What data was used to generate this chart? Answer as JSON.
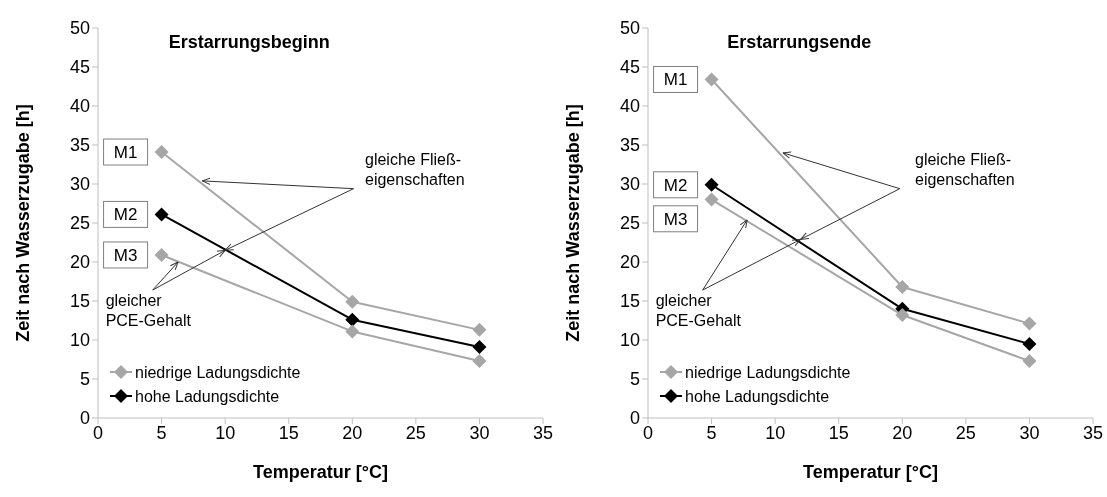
{
  "chart_data": [
    {
      "type": "line",
      "title": "Erstarrungsbeginn",
      "xlabel": "Temperatur [°C]",
      "ylabel": "Zeit nach Wasserzugabe [h]",
      "x": [
        5,
        20,
        30
      ],
      "xlim": [
        0,
        35
      ],
      "xticks": [
        0,
        5,
        10,
        15,
        20,
        25,
        30,
        35
      ],
      "ylim": [
        0,
        50
      ],
      "yticks": [
        0,
        5,
        10,
        15,
        20,
        25,
        30,
        35,
        40,
        45,
        50
      ],
      "grid": false,
      "legend": "bottom left",
      "marker": "diamond",
      "line_style": "solid",
      "series": [
        {
          "name": "niedrige Ladungsdichte",
          "color": "#a6a6a6",
          "values": [
            34.1,
            14.9,
            11.3
          ]
        },
        {
          "name": "hohe Ladungsdichte",
          "color": "#000000",
          "values": [
            26.1,
            12.6,
            9.1
          ]
        },
        {
          "color": "#a6a6a6",
          "values": [
            20.9,
            11.1,
            7.3
          ]
        }
      ],
      "annotations": [
        {
          "text": "M1",
          "x": 5,
          "y": 34.1
        },
        {
          "text": "M2",
          "x": 5,
          "y": 26.1
        },
        {
          "text": "M3",
          "x": 5,
          "y": 20.9
        },
        {
          "text": "gleiche Fließ-\neigenschaften",
          "x": 8.2,
          "y": 30.4
        },
        {
          "text": "gleicher\nPCE-Gehalt",
          "x": 6.3,
          "y": 20.0
        }
      ]
    },
    {
      "type": "line",
      "title": "Erstarrungsende",
      "xlabel": "Temperatur [°C]",
      "ylabel": "Zeit nach Wasserzugabe [h]",
      "x": [
        5,
        20,
        30
      ],
      "xlim": [
        0,
        35
      ],
      "xticks": [
        0,
        5,
        10,
        15,
        20,
        25,
        30,
        35
      ],
      "ylim": [
        0,
        50
      ],
      "yticks": [
        0,
        5,
        10,
        15,
        20,
        25,
        30,
        35,
        40,
        45,
        50
      ],
      "grid": false,
      "legend": "bottom left",
      "marker": "diamond",
      "line_style": "solid",
      "series": [
        {
          "name": "niedrige Ladungsdichte",
          "color": "#a6a6a6",
          "values": [
            43.4,
            16.8,
            12.1
          ]
        },
        {
          "name": "hohe Ladungsdichte",
          "color": "#000000",
          "values": [
            29.9,
            14.0,
            9.5
          ]
        },
        {
          "color": "#a6a6a6",
          "values": [
            28.0,
            13.2,
            7.3
          ]
        }
      ],
      "annotations": [
        {
          "text": "M1",
          "x": 5,
          "y": 43.4
        },
        {
          "text": "M2",
          "x": 5,
          "y": 29.9
        },
        {
          "text": "M3",
          "x": 5,
          "y": 28.0
        },
        {
          "text": "gleiche Fließ-\neigenschaften",
          "x": 10.6,
          "y": 34.0
        },
        {
          "text": "gleicher\nPCE-Gehalt",
          "x": 7.8,
          "y": 25.4
        }
      ]
    }
  ]
}
